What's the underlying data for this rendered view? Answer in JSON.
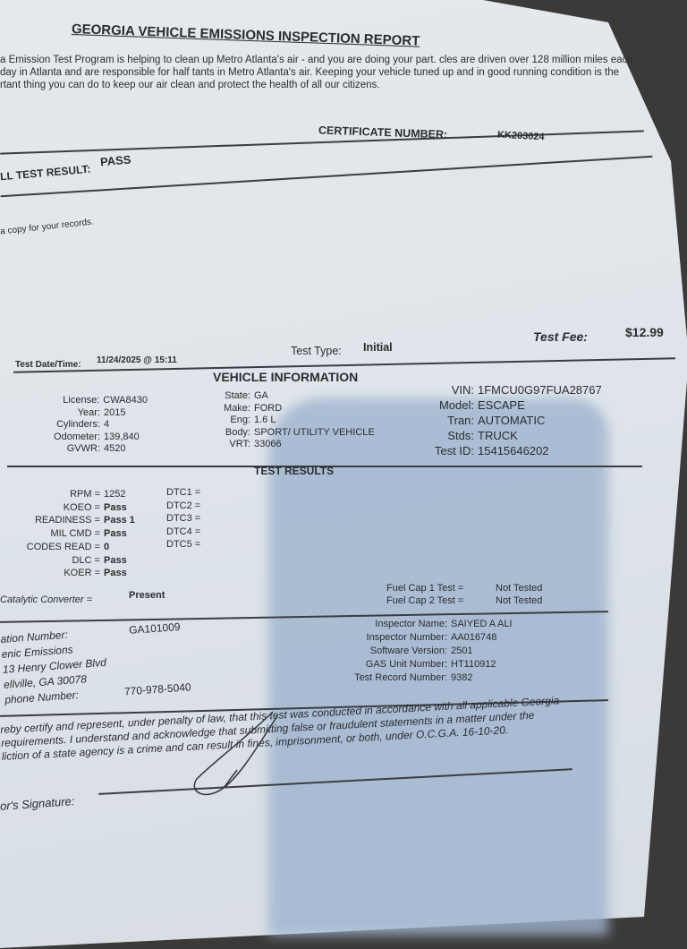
{
  "header": {
    "title": "GEORGIA VEHICLE EMISSIONS INSPECTION REPORT",
    "intro": "a Emission Test Program is helping to clean up Metro Atlanta's air - and you are doing your part. cles are driven over 128 million miles each day in Atlanta and are responsible for half tants in Metro Atlanta's air. Keeping your vehicle tuned up and in good running condition is the rtant thing you can do to keep our air clean and protect the health of all our citizens.",
    "certificate_label": "CERTIFICATE NUMBER:",
    "certificate_number": "KK203024",
    "result_label": "LL TEST RESULT:",
    "result_value": "PASS",
    "copy_note": "a copy for your records."
  },
  "summary": {
    "date_label": "Test Date/Time:",
    "date_value": "11/24/2025 @ 15:11",
    "type_label": "Test Type:",
    "type_value": "Initial",
    "fee_label": "Test Fee:",
    "fee_value": "$12.99"
  },
  "vehicle": {
    "heading": "VEHICLE INFORMATION",
    "left": [
      {
        "k": "License:",
        "v": "CWA8430"
      },
      {
        "k": "Year:",
        "v": "2015"
      },
      {
        "k": "Cylinders:",
        "v": "4"
      },
      {
        "k": "Odometer:",
        "v": "139,840"
      },
      {
        "k": "GVWR:",
        "v": "4520"
      }
    ],
    "mid": [
      {
        "k": "State:",
        "v": "GA"
      },
      {
        "k": "Make:",
        "v": "FORD"
      },
      {
        "k": "Eng:",
        "v": "1.6 L"
      },
      {
        "k": "Body:",
        "v": "SPORT/ UTILITY VEHICLE"
      },
      {
        "k": "VRT:",
        "v": "33066"
      }
    ],
    "right": [
      {
        "k": "VIN:",
        "v": "1FMCU0G97FUA28767"
      },
      {
        "k": "Model:",
        "v": "ESCAPE"
      },
      {
        "k": "Tran:",
        "v": "AUTOMATIC"
      },
      {
        "k": "Stds:",
        "v": "TRUCK"
      },
      {
        "k": "Test ID:",
        "v": "15415646202"
      }
    ]
  },
  "results": {
    "heading": "TEST RESULTS",
    "obd": [
      {
        "k": "RPM =",
        "v": "1252"
      },
      {
        "k": "KOEO =",
        "v": "Pass"
      },
      {
        "k": "READINESS =",
        "v": "Pass 1"
      },
      {
        "k": "MIL CMD =",
        "v": "Pass"
      },
      {
        "k": "CODES READ =",
        "v": "0"
      },
      {
        "k": "DLC =",
        "v": "Pass"
      },
      {
        "k": "KOER =",
        "v": "Pass"
      }
    ],
    "dtc": [
      "DTC1 =",
      "DTC2 =",
      "DTC3 =",
      "DTC4 =",
      "DTC5 ="
    ],
    "catalytic_label": "Catalytic Converter =",
    "catalytic_value": "Present",
    "fuel": [
      {
        "k": "Fuel Cap 1 Test =",
        "v": "Not Tested"
      },
      {
        "k": "Fuel Cap 2 Test =",
        "v": "Not Tested"
      }
    ]
  },
  "station": {
    "number_label": "ation Number:",
    "number_value": "GA101009",
    "name": "enic Emissions",
    "address1": "13 Henry Clower Blvd",
    "address2": "ellville, GA 30078",
    "phone_label": "phone Number:",
    "phone_value": "770-978-5040"
  },
  "inspector": [
    {
      "k": "Inspector Name:",
      "v": "SAIYED A ALI"
    },
    {
      "k": "Inspector Number:",
      "v": "AA016748"
    },
    {
      "k": "Software Version:",
      "v": "2501"
    },
    {
      "k": "GAS Unit Number:",
      "v": "HT110912"
    },
    {
      "k": "Test Record Number:",
      "v": "9382"
    }
  ],
  "certification": {
    "line1": "reby certify and represent, under penalty of law, that this test was conducted in accordance with all applicable Georgia",
    "line2": "requirements. I understand and acknowledge that submitting false or fraudulent statements in a matter under the",
    "line3": "liction of a state agency is a crime and can result in fines, imprisonment, or both, under O.C.G.A. 16-10-20.",
    "signature_label": "or's Signature:"
  }
}
